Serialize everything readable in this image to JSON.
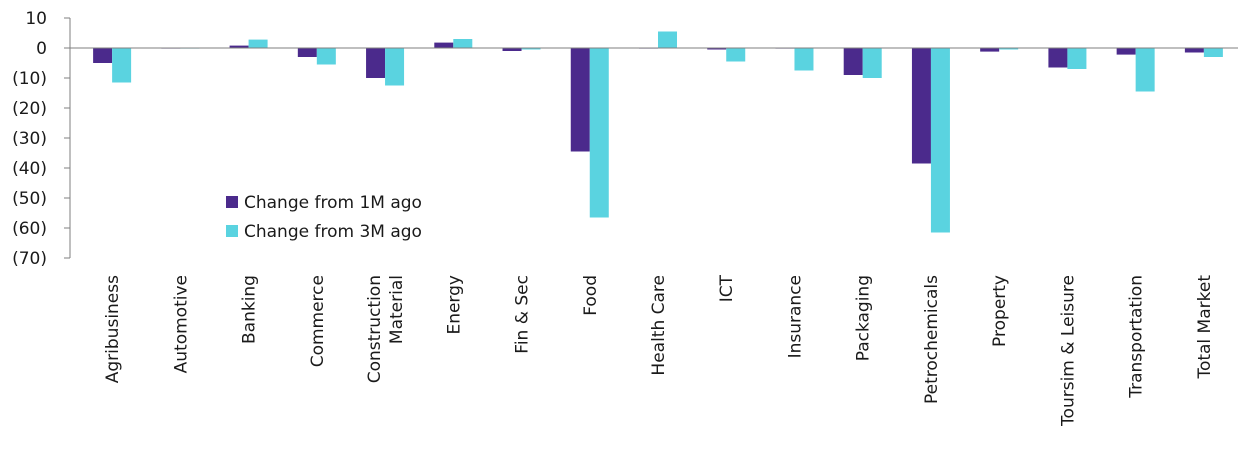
{
  "chart_data": {
    "type": "bar",
    "title": "",
    "xlabel": "",
    "ylabel": "",
    "ylim": [
      -70,
      10
    ],
    "y_ticks": [
      {
        "value": 10,
        "label": "10"
      },
      {
        "value": 0,
        "label": "0"
      },
      {
        "value": -10,
        "label": "(10)"
      },
      {
        "value": -20,
        "label": "(20)"
      },
      {
        "value": -30,
        "label": "(30)"
      },
      {
        "value": -40,
        "label": "(40)"
      },
      {
        "value": -50,
        "label": "(50)"
      },
      {
        "value": -60,
        "label": "(60)"
      },
      {
        "value": -70,
        "label": "(70)"
      }
    ],
    "categories": [
      [
        "Agribusiness"
      ],
      [
        "Automotive"
      ],
      [
        "Banking"
      ],
      [
        "Commerce"
      ],
      [
        "Construction",
        "Material"
      ],
      [
        "Energy"
      ],
      [
        "Fin & Sec"
      ],
      [
        "Food"
      ],
      [
        "Health Care"
      ],
      [
        "ICT"
      ],
      [
        "Insurance"
      ],
      [
        "Packaging"
      ],
      [
        "Petrochemicals"
      ],
      [
        "Property"
      ],
      [
        "Toursim & Leisure"
      ],
      [
        "Transportation"
      ],
      [
        "Total Market"
      ]
    ],
    "series": [
      {
        "name": "Change from 1M ago",
        "color": "#4b2a8c",
        "values": [
          -5,
          -0.2,
          0.8,
          -3,
          -10,
          1.8,
          -1,
          -34.5,
          0,
          -0.5,
          0,
          -9,
          -38.5,
          -1.2,
          -6.5,
          -2.2,
          -1.5
        ]
      },
      {
        "name": "Change from 3M ago",
        "color": "#5ad3e0",
        "values": [
          -11.5,
          -0.2,
          2.8,
          -5.5,
          -12.5,
          3,
          -0.5,
          -56.5,
          5.5,
          -4.5,
          -7.5,
          -10,
          -61.5,
          -0.5,
          -7,
          -14.5,
          -3
        ]
      }
    ],
    "legend_position": "inside-lower-left",
    "grid": false
  }
}
